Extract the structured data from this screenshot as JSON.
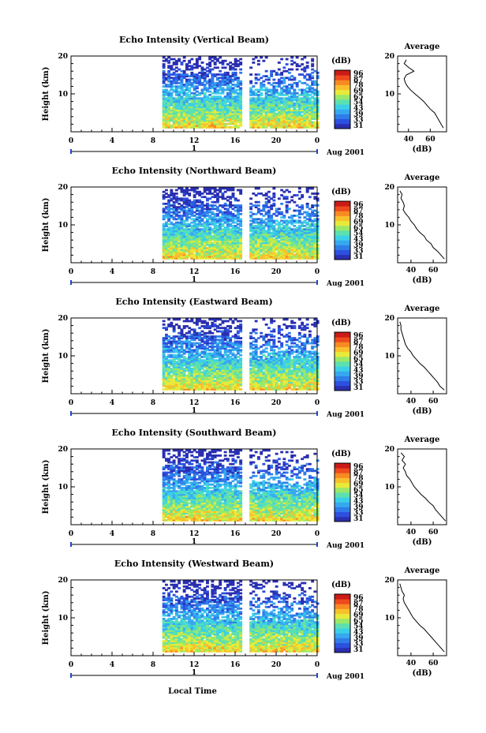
{
  "figure": {
    "x_axis_title": "Local Time",
    "date_label": "Aug 2001",
    "colorbar_unit": "(dB)",
    "colorbar_ticks": [
      "96",
      "87",
      "78",
      "69",
      "65",
      "54",
      "43",
      "39",
      "33",
      "31"
    ],
    "average_title": "Average",
    "average_xlabel": "(dB)"
  },
  "colormap": [
    "#2a2fb0",
    "#2c50e0",
    "#2f7de8",
    "#36a8f0",
    "#3bd0e8",
    "#5ce0b0",
    "#9ae868",
    "#e8ea3a",
    "#f8c02c",
    "#f88a22",
    "#ee4a1e",
    "#cc1a16"
  ],
  "chart_data": [
    {
      "type": "heatmap",
      "title": "Echo Intensity (Vertical Beam)",
      "xlabel": "",
      "ylabel": "Height (km)",
      "x_ticks": [
        "0",
        "4",
        "8",
        "12",
        "16",
        "20",
        "0"
      ],
      "y_ticks": [
        "20",
        "10"
      ],
      "day_marker": "1",
      "xlim_hours": [
        0,
        24
      ],
      "ylim_km": [
        0,
        20
      ],
      "data_gaps_hours": [
        [
          0,
          8.9
        ],
        [
          16.6,
          17.3
        ]
      ],
      "colorbar_range_db": [
        31,
        96
      ],
      "average": {
        "x_ticks": [
          "40",
          "60"
        ],
        "xlim": [
          30,
          75
        ],
        "profile_heights_km": [
          1,
          2,
          3,
          4,
          5,
          6,
          7,
          8,
          9,
          10,
          11,
          12,
          13,
          14,
          15,
          16,
          17,
          18,
          19
        ],
        "profile_db": [
          72,
          70,
          68,
          66,
          64,
          60,
          57,
          54,
          50,
          46,
          42,
          39,
          37,
          36,
          38,
          45,
          40,
          36,
          38
        ]
      }
    },
    {
      "type": "heatmap",
      "title": "Echo Intensity (Northward Beam)",
      "xlabel": "",
      "ylabel": "Height (km)",
      "x_ticks": [
        "0",
        "4",
        "8",
        "12",
        "16",
        "20",
        "0"
      ],
      "y_ticks": [
        "20",
        "10"
      ],
      "day_marker": "1",
      "xlim_hours": [
        0,
        24
      ],
      "ylim_km": [
        0,
        20
      ],
      "data_gaps_hours": [
        [
          0,
          8.9
        ],
        [
          16.6,
          17.3
        ]
      ],
      "colorbar_range_db": [
        31,
        96
      ],
      "average": {
        "x_ticks": [
          "40",
          "60"
        ],
        "xlim": [
          28,
          72
        ],
        "profile_heights_km": [
          1,
          2,
          3,
          4,
          5,
          6,
          7,
          8,
          9,
          10,
          11,
          12,
          13,
          14,
          15,
          16,
          17,
          18,
          19
        ],
        "profile_db": [
          70,
          67,
          64,
          60,
          58,
          54,
          52,
          48,
          45,
          43,
          40,
          38,
          35,
          33,
          34,
          33,
          31,
          32,
          30
        ]
      }
    },
    {
      "type": "heatmap",
      "title": "Echo Intensity (Eastward Beam)",
      "xlabel": "",
      "ylabel": "Height (km)",
      "x_ticks": [
        "0",
        "4",
        "8",
        "12",
        "16",
        "20",
        "0"
      ],
      "y_ticks": [
        "20",
        "10"
      ],
      "day_marker": "1",
      "xlim_hours": [
        0,
        24
      ],
      "ylim_km": [
        0,
        20
      ],
      "data_gaps_hours": [
        [
          0,
          8.9
        ],
        [
          16.6,
          17.3
        ]
      ],
      "colorbar_range_db": [
        31,
        96
      ],
      "average": {
        "x_ticks": [
          "40",
          "60"
        ],
        "xlim": [
          28,
          72
        ],
        "profile_heights_km": [
          1,
          2,
          3,
          4,
          5,
          6,
          7,
          8,
          9,
          10,
          11,
          12,
          13,
          14,
          15,
          16,
          17,
          18,
          19
        ],
        "profile_db": [
          70,
          66,
          64,
          61,
          58,
          55,
          52,
          48,
          45,
          42,
          40,
          37,
          35,
          34,
          33,
          32,
          31,
          31,
          30
        ]
      }
    },
    {
      "type": "heatmap",
      "title": "Echo Intensity (Southward Beam)",
      "xlabel": "",
      "ylabel": "Height (km)",
      "x_ticks": [
        "0",
        "4",
        "8",
        "12",
        "16",
        "20",
        "0"
      ],
      "y_ticks": [
        "20",
        "10"
      ],
      "day_marker": "1",
      "xlim_hours": [
        0,
        24
      ],
      "ylim_km": [
        0,
        20
      ],
      "data_gaps_hours": [
        [
          0,
          8.9
        ],
        [
          16.6,
          17.3
        ]
      ],
      "colorbar_range_db": [
        31,
        96
      ],
      "average": {
        "x_ticks": [
          "40",
          "60"
        ],
        "xlim": [
          28,
          72
        ],
        "profile_heights_km": [
          1,
          2,
          3,
          4,
          5,
          6,
          7,
          8,
          9,
          10,
          11,
          12,
          13,
          14,
          15,
          16,
          17,
          18,
          19
        ],
        "profile_db": [
          71,
          68,
          65,
          62,
          60,
          56,
          53,
          49,
          46,
          43,
          41,
          39,
          36,
          35,
          33,
          35,
          32,
          34,
          31
        ]
      }
    },
    {
      "type": "heatmap",
      "title": "Echo Intensity (Westward Beam)",
      "xlabel": "Local Time",
      "ylabel": "Height (km)",
      "x_ticks": [
        "0",
        "4",
        "8",
        "12",
        "16",
        "20",
        "0"
      ],
      "y_ticks": [
        "20",
        "10"
      ],
      "day_marker": "1",
      "xlim_hours": [
        0,
        24
      ],
      "ylim_km": [
        0,
        20
      ],
      "data_gaps_hours": [
        [
          0,
          8.9
        ],
        [
          16.6,
          17.3
        ]
      ],
      "colorbar_range_db": [
        31,
        96
      ],
      "average": {
        "x_ticks": [
          "40",
          "60"
        ],
        "xlim": [
          28,
          72
        ],
        "profile_heights_km": [
          1,
          2,
          3,
          4,
          5,
          6,
          7,
          8,
          9,
          10,
          11,
          12,
          13,
          14,
          15,
          16,
          17,
          18,
          19
        ],
        "profile_db": [
          70,
          67,
          64,
          61,
          58,
          55,
          52,
          48,
          45,
          42,
          40,
          38,
          36,
          34,
          33,
          34,
          32,
          31,
          30
        ]
      }
    }
  ]
}
